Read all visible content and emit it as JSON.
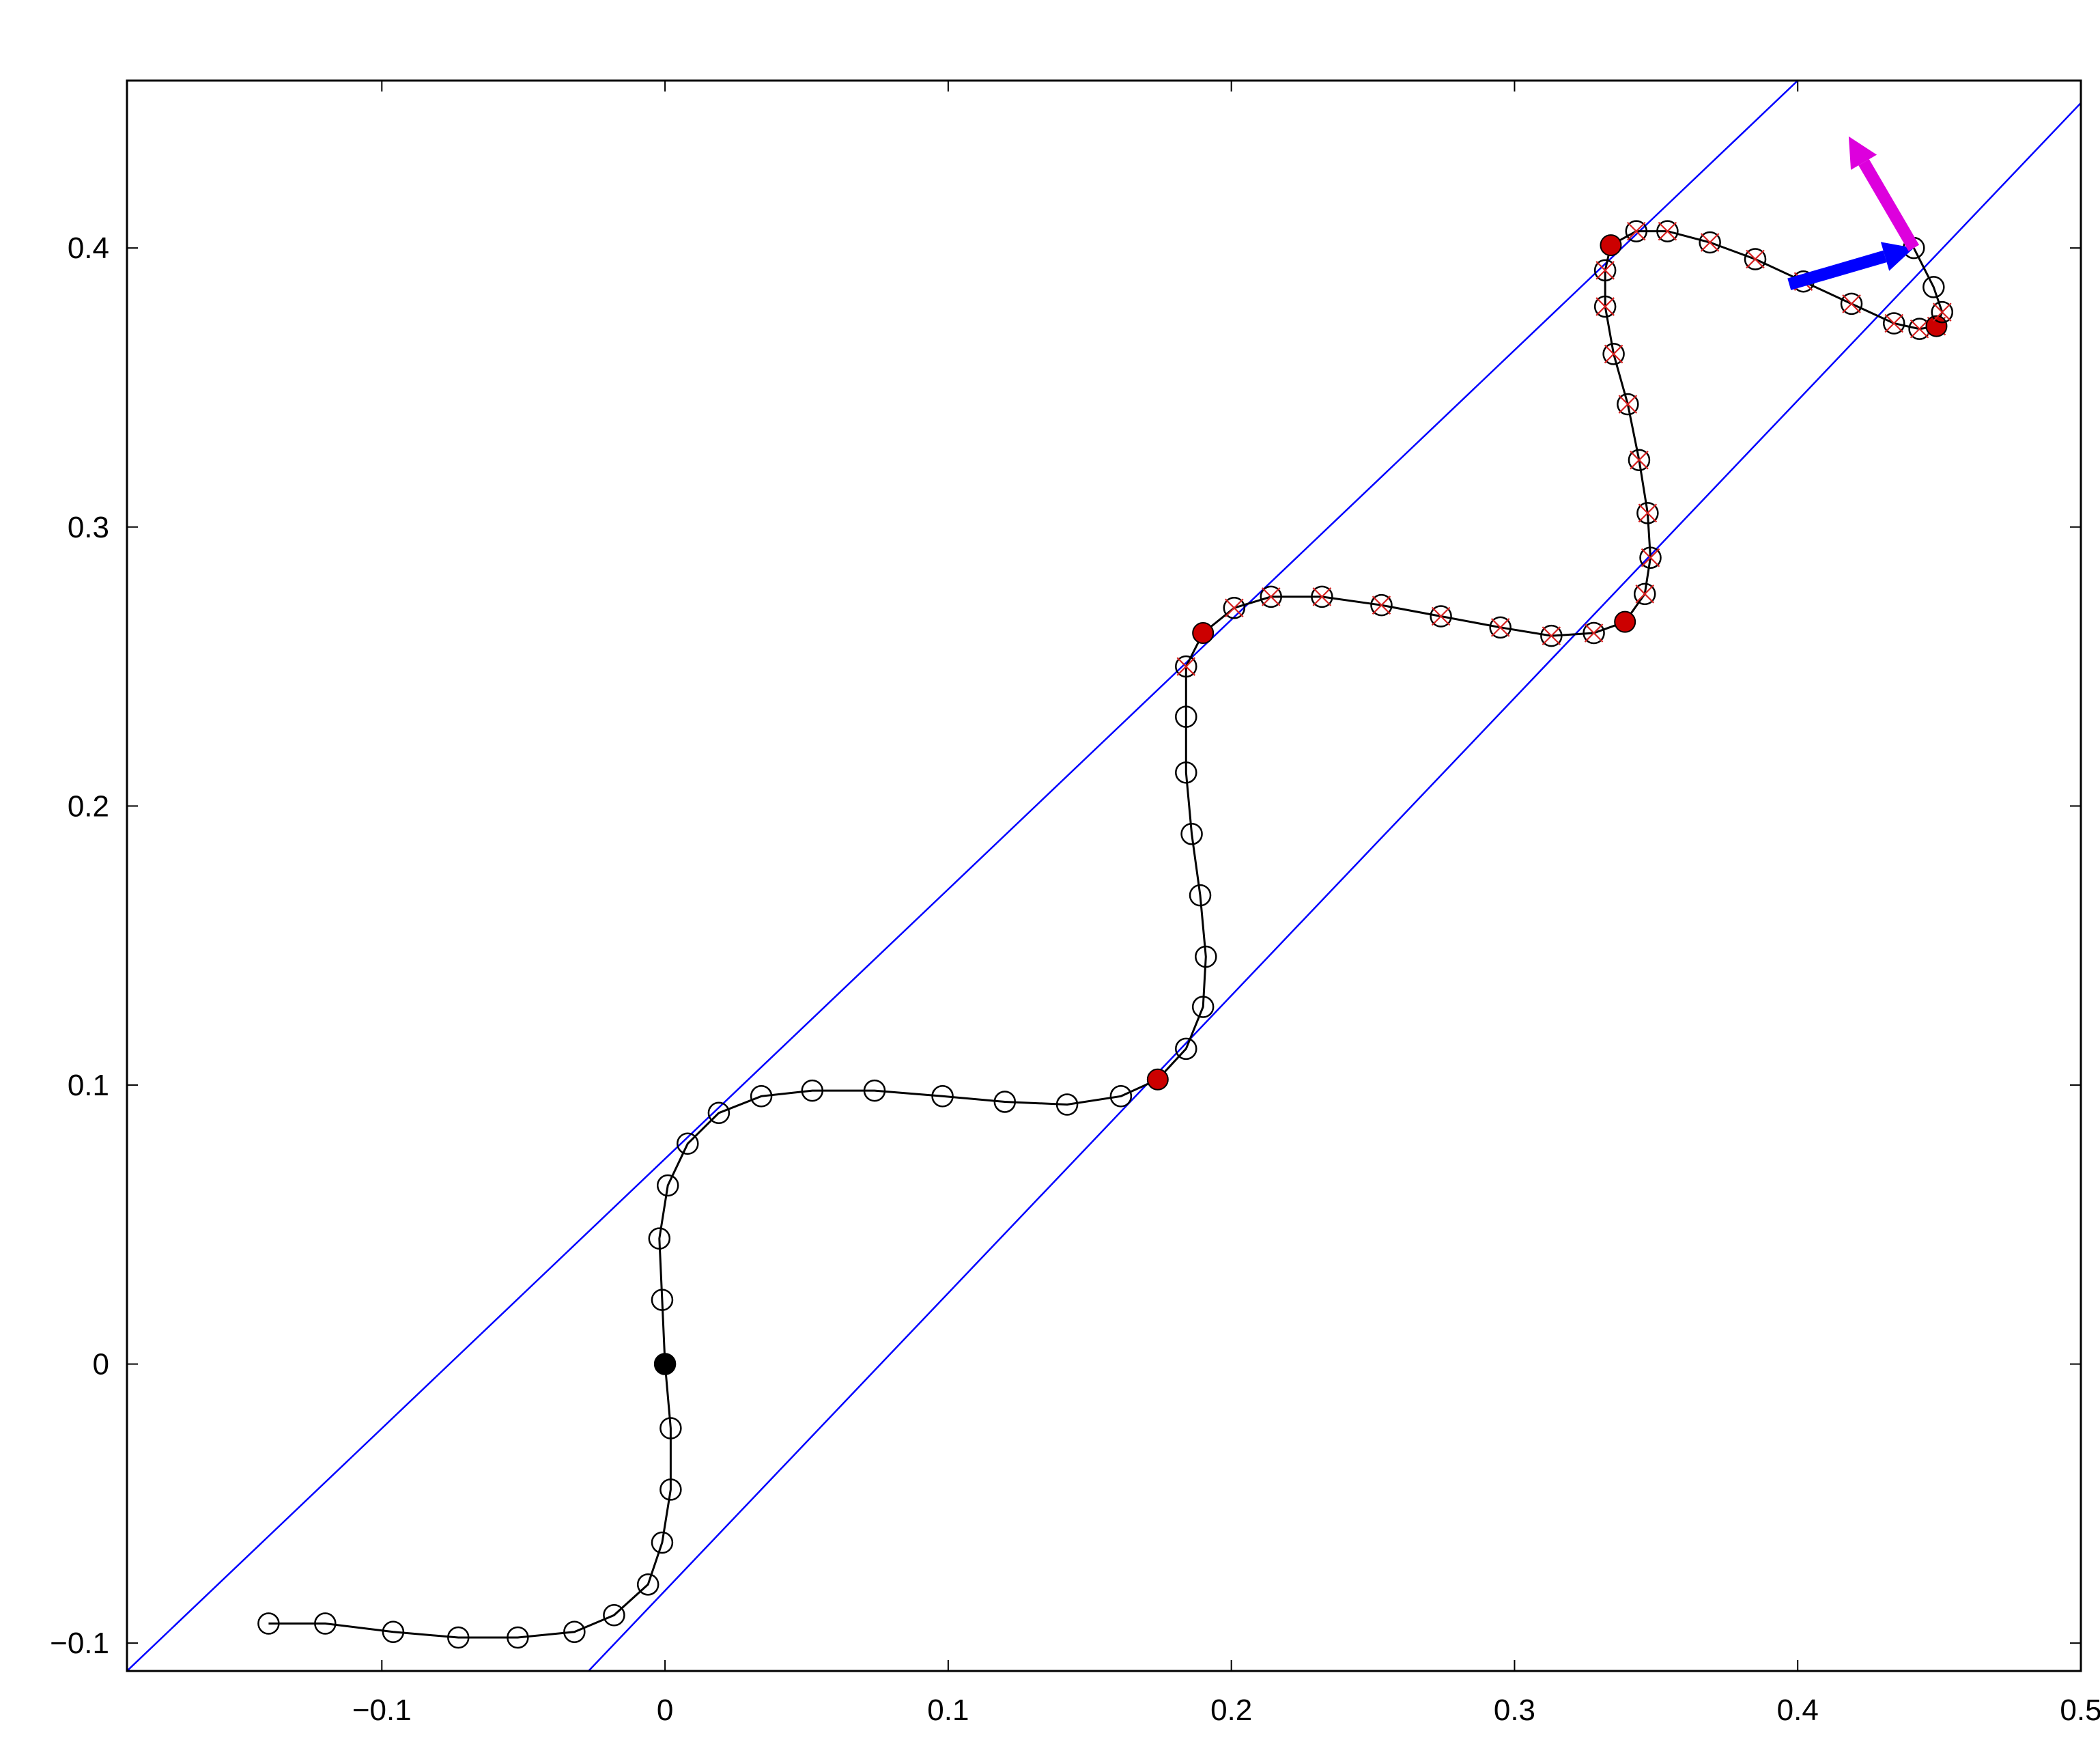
{
  "chart_data": {
    "type": "scatter",
    "title": "",
    "xlabel": "",
    "ylabel": "",
    "xlim": [
      -0.19,
      0.5
    ],
    "ylim": [
      -0.11,
      0.46
    ],
    "grid": false,
    "x_ticks": [
      -0.1,
      0,
      0.1,
      0.2,
      0.3,
      0.4,
      0.5
    ],
    "x_tick_labels": [
      "−0.1",
      "0",
      "0.1",
      "0.2",
      "0.3",
      "0.4",
      "0.5"
    ],
    "y_ticks": [
      -0.1,
      0,
      0.1,
      0.2,
      0.3,
      0.4
    ],
    "y_tick_labels": [
      "−0.1",
      "0",
      "0.1",
      "0.2",
      "0.3",
      "0.4"
    ],
    "colors": {
      "path": "#000000",
      "boundary": "#0000ff",
      "key_point": "#cc0000",
      "cross": "#d62020",
      "arrow_blue": "#0000ff",
      "arrow_magenta": "#dd00dd"
    },
    "path": [
      [
        -0.14,
        -0.093
      ],
      [
        -0.12,
        -0.093
      ],
      [
        -0.096,
        -0.096
      ],
      [
        -0.073,
        -0.098
      ],
      [
        -0.052,
        -0.098
      ],
      [
        -0.032,
        -0.096
      ],
      [
        -0.018,
        -0.09
      ],
      [
        -0.006,
        -0.079
      ],
      [
        -0.001,
        -0.064
      ],
      [
        0.002,
        -0.045
      ],
      [
        0.002,
        -0.023
      ],
      [
        0.0,
        0.0
      ],
      [
        -0.001,
        0.023
      ],
      [
        -0.002,
        0.045
      ],
      [
        0.001,
        0.064
      ],
      [
        0.008,
        0.079
      ],
      [
        0.019,
        0.09
      ],
      [
        0.034,
        0.096
      ],
      [
        0.052,
        0.098
      ],
      [
        0.074,
        0.098
      ],
      [
        0.098,
        0.096
      ],
      [
        0.12,
        0.094
      ],
      [
        0.142,
        0.093
      ],
      [
        0.161,
        0.096
      ],
      [
        0.174,
        0.102
      ],
      [
        0.184,
        0.113
      ],
      [
        0.19,
        0.128
      ],
      [
        0.191,
        0.146
      ],
      [
        0.189,
        0.168
      ],
      [
        0.186,
        0.19
      ],
      [
        0.184,
        0.212
      ],
      [
        0.184,
        0.232
      ],
      [
        0.184,
        0.25
      ],
      [
        0.19,
        0.262
      ],
      [
        0.201,
        0.271
      ],
      [
        0.214,
        0.275
      ],
      [
        0.232,
        0.275
      ],
      [
        0.253,
        0.272
      ],
      [
        0.274,
        0.268
      ],
      [
        0.295,
        0.264
      ],
      [
        0.313,
        0.261
      ],
      [
        0.328,
        0.262
      ],
      [
        0.339,
        0.266
      ],
      [
        0.346,
        0.276
      ],
      [
        0.348,
        0.289
      ],
      [
        0.347,
        0.305
      ],
      [
        0.344,
        0.324
      ],
      [
        0.34,
        0.344
      ],
      [
        0.335,
        0.362
      ],
      [
        0.332,
        0.379
      ],
      [
        0.332,
        0.392
      ],
      [
        0.334,
        0.401
      ],
      [
        0.343,
        0.406
      ],
      [
        0.354,
        0.406
      ],
      [
        0.369,
        0.402
      ],
      [
        0.385,
        0.396
      ],
      [
        0.402,
        0.388
      ],
      [
        0.419,
        0.38
      ],
      [
        0.434,
        0.373
      ],
      [
        0.443,
        0.371
      ],
      [
        0.449,
        0.372
      ],
      [
        0.451,
        0.377
      ],
      [
        0.448,
        0.386
      ],
      [
        0.441,
        0.4
      ]
    ],
    "marker_styles": {
      "open_circle": [
        0,
        1,
        2,
        3,
        4,
        5,
        6,
        7,
        8,
        9,
        10,
        12,
        13,
        14,
        15,
        16,
        17,
        18,
        19,
        20,
        21,
        22,
        23,
        25,
        26,
        27,
        28,
        29,
        30,
        31,
        61,
        62,
        63
      ],
      "filled_black": [
        11
      ],
      "filled_red": [
        24,
        33,
        42,
        51,
        60
      ],
      "circle_with_red_x": [
        32,
        34,
        35,
        36,
        37,
        38,
        39,
        40,
        41,
        43,
        44,
        45,
        46,
        47,
        48,
        49,
        50,
        52,
        53,
        54,
        55,
        56,
        57,
        58,
        59,
        60,
        61
      ]
    },
    "boundary_lines": [
      {
        "x": [
          -0.19,
          0.4
        ],
        "y": [
          -0.11,
          0.46
        ]
      },
      {
        "x": [
          -0.027,
          0.5
        ],
        "y": [
          -0.11,
          0.452
        ]
      }
    ],
    "arrows": [
      {
        "color": "blue",
        "from": [
          0.397,
          0.387
        ],
        "to": [
          0.441,
          0.4
        ]
      },
      {
        "color": "magenta",
        "from": [
          0.441,
          0.4
        ],
        "to": [
          0.418,
          0.44
        ]
      }
    ]
  }
}
